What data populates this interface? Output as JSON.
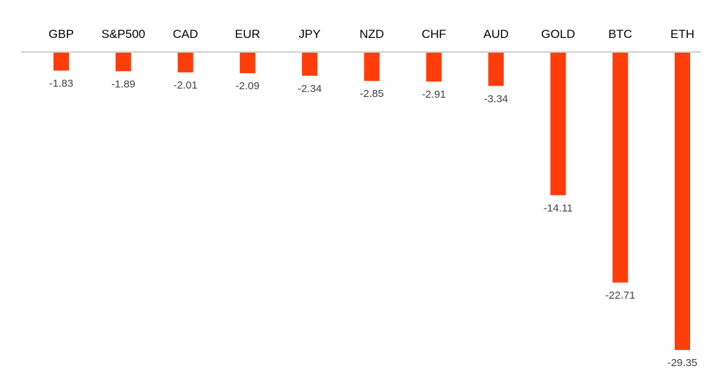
{
  "chart_data": {
    "type": "bar",
    "orientation": "vertical",
    "categories": [
      "GBP",
      "S&P500",
      "CAD",
      "EUR",
      "JPY",
      "NZD",
      "CHF",
      "AUD",
      "GOLD",
      "BTC",
      "ETH"
    ],
    "values": [
      -1.83,
      -1.89,
      -2.01,
      -2.09,
      -2.34,
      -2.85,
      -2.91,
      -3.34,
      -14.11,
      -22.71,
      -29.35
    ],
    "value_labels": [
      "-1.83",
      "-1.89",
      "-2.01",
      "-2.09",
      "-2.34",
      "-2.85",
      "-2.91",
      "-3.34",
      "-14.11",
      "-22.71",
      "-29.35"
    ],
    "title": "",
    "xlabel": "",
    "ylabel": "",
    "ylim": [
      -29.35,
      0
    ],
    "category_axis_position": "top",
    "grid": false,
    "legend": "none",
    "bar_color": "#ff3d0a",
    "axis_line_color": "#c0c0c0"
  }
}
